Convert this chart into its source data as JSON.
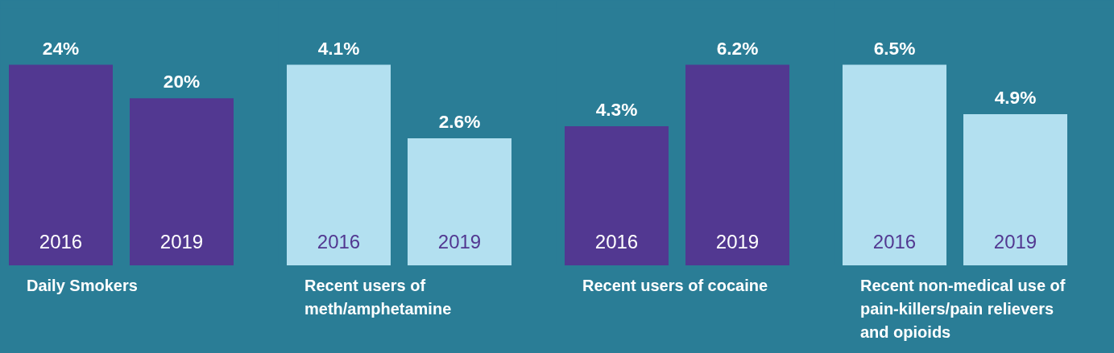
{
  "chart_data": [
    {
      "type": "bar",
      "xlabel": "Daily Smokers",
      "categories": [
        "2016",
        "2019"
      ],
      "values": [
        24,
        20
      ],
      "value_labels": [
        "24%",
        "20%"
      ],
      "color": "#523891",
      "tick_labels": false,
      "grid": false
    },
    {
      "type": "bar",
      "xlabel": "Recent users of meth/amphetamine",
      "categories": [
        "2016",
        "2019"
      ],
      "values": [
        4.1,
        2.6
      ],
      "value_labels": [
        "4.1%",
        "2.6%"
      ],
      "color": "#b3e0f0",
      "tick_labels": false,
      "grid": false
    },
    {
      "type": "bar",
      "xlabel": "Recent users of cocaine",
      "categories": [
        "2016",
        "2019"
      ],
      "values": [
        4.3,
        6.2
      ],
      "value_labels": [
        "4.3%",
        "6.2%"
      ],
      "color": "#523891",
      "tick_labels": false,
      "grid": false
    },
    {
      "type": "bar",
      "xlabel": "Recent non-medical use of pain-killers/pain relievers and opioids",
      "categories": [
        "2016",
        "2019"
      ],
      "values": [
        6.5,
        4.9
      ],
      "value_labels": [
        "6.5%",
        "4.9%"
      ],
      "color": "#b3e0f0",
      "tick_labels": false,
      "grid": false
    }
  ]
}
